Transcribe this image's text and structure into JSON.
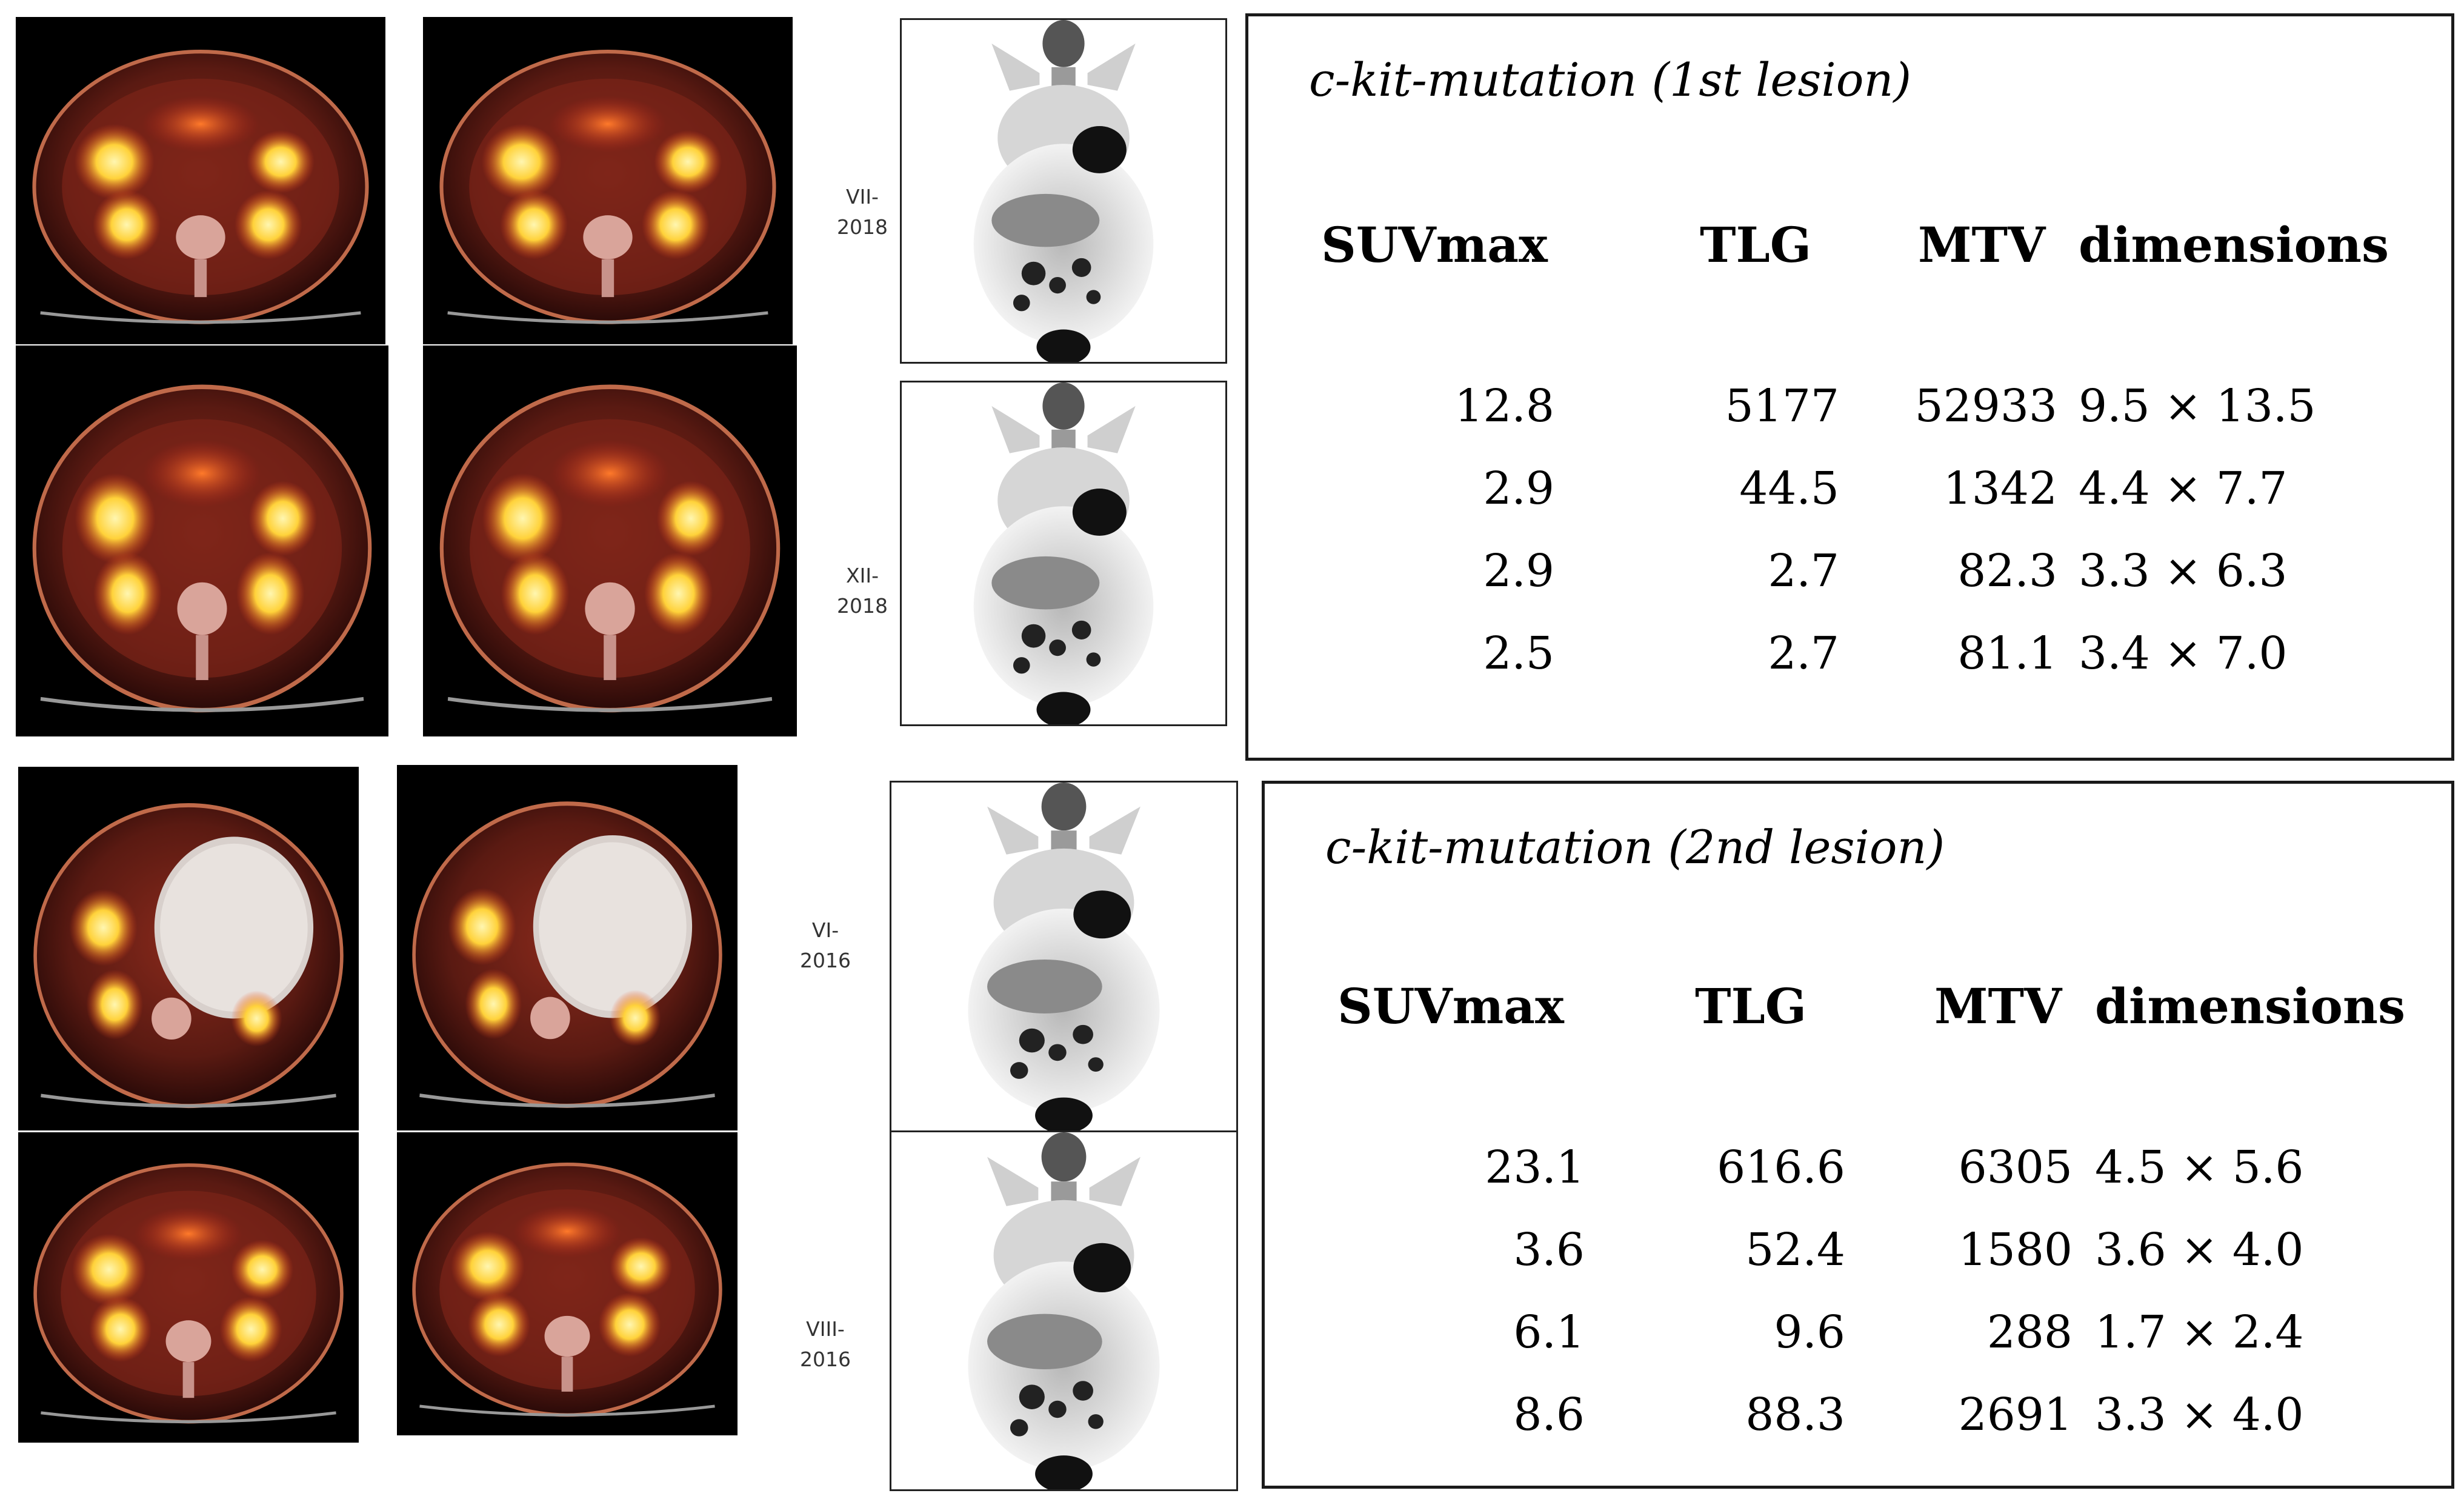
{
  "figure": {
    "top_group": {
      "dates": [
        {
          "line1": "VII-",
          "line2": "2018"
        },
        {
          "line1": "XII-",
          "line2": "2018"
        }
      ],
      "table": {
        "title": "c-kit-mutation (1st lesion)",
        "headers": [
          "SUVmax",
          "TLG",
          "MTV",
          "dimensions"
        ],
        "rows": [
          [
            "12.8",
            "5177",
            "52933",
            "9.5 × 13.5"
          ],
          [
            "2.9",
            "44.5",
            "1342",
            "4.4 × 7.7"
          ],
          [
            "2.9",
            "2.7",
            "82.3",
            "3.3 × 6.3"
          ],
          [
            "2.5",
            "2.7",
            "81.1",
            "3.4 × 7.0"
          ]
        ]
      }
    },
    "bottom_group": {
      "dates": [
        {
          "line1": "VI-",
          "line2": "2016"
        },
        {
          "line1": "VIII-",
          "line2": "2016"
        }
      ],
      "table": {
        "title": "c-kit-mutation (2nd lesion)",
        "headers": [
          "SUVmax",
          "TLG",
          "MTV",
          "dimensions"
        ],
        "rows": [
          [
            "23.1",
            "616.6",
            "6305",
            "4.5 × 5.6"
          ],
          [
            "3.6",
            "52.4",
            "1580",
            "3.6 × 4.0"
          ],
          [
            "6.1",
            "9.6",
            "288",
            "1.7 × 2.4"
          ],
          [
            "8.6",
            "88.3",
            "2691",
            "3.3 × 4.0"
          ]
        ]
      }
    },
    "colors": {
      "background": "#ffffff",
      "border": "#1a1a1a",
      "scan_background": "#000000",
      "pet_hot": "#ffd23a",
      "pet_warm": "#e0401a",
      "pet_tissue": "#5a1a12"
    }
  }
}
